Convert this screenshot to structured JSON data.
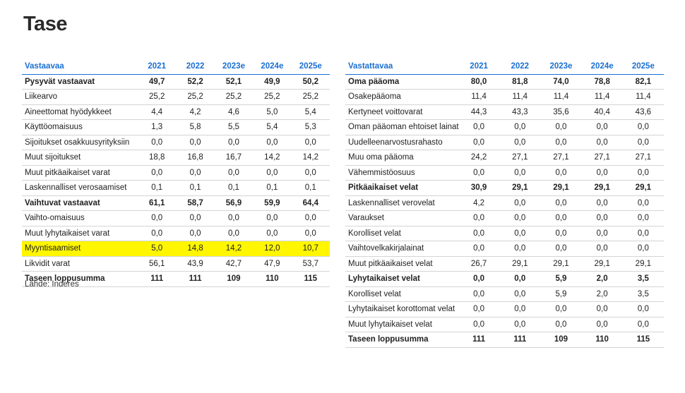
{
  "title": "Tase",
  "source": "Lähde: Inderes",
  "left": {
    "header": [
      "Vastaavaa",
      "2021",
      "2022",
      "2023e",
      "2024e",
      "2025e"
    ],
    "rows": [
      {
        "label": "Pysyvät vastaavat",
        "values": [
          "49,7",
          "52,2",
          "52,1",
          "49,9",
          "50,2"
        ],
        "bold": true
      },
      {
        "label": "Liikearvo",
        "values": [
          "25,2",
          "25,2",
          "25,2",
          "25,2",
          "25,2"
        ]
      },
      {
        "label": "Aineettomat hyödykkeet",
        "values": [
          "4,4",
          "4,2",
          "4,6",
          "5,0",
          "5,4"
        ]
      },
      {
        "label": "Käyttöomaisuus",
        "values": [
          "1,3",
          "5,8",
          "5,5",
          "5,4",
          "5,3"
        ]
      },
      {
        "label": "Sijoitukset osakkuusyrityksiin",
        "values": [
          "0,0",
          "0,0",
          "0,0",
          "0,0",
          "0,0"
        ]
      },
      {
        "label": "Muut sijoitukset",
        "values": [
          "18,8",
          "16,8",
          "16,7",
          "14,2",
          "14,2"
        ]
      },
      {
        "label": "Muut pitkäaikaiset varat",
        "values": [
          "0,0",
          "0,0",
          "0,0",
          "0,0",
          "0,0"
        ]
      },
      {
        "label": "Laskennalliset verosaamiset",
        "values": [
          "0,1",
          "0,1",
          "0,1",
          "0,1",
          "0,1"
        ]
      },
      {
        "label": "Vaihtuvat vastaavat",
        "values": [
          "61,1",
          "58,7",
          "56,9",
          "59,9",
          "64,4"
        ],
        "bold": true
      },
      {
        "label": "Vaihto-omaisuus",
        "values": [
          "0,0",
          "0,0",
          "0,0",
          "0,0",
          "0,0"
        ]
      },
      {
        "label": "Muut lyhytaikaiset varat",
        "values": [
          "0,0",
          "0,0",
          "0,0",
          "0,0",
          "0,0"
        ]
      },
      {
        "label": "Myyntisaamiset",
        "values": [
          "5,0",
          "14,8",
          "14,2",
          "12,0",
          "10,7"
        ],
        "highlight": true
      },
      {
        "label": "Likvidit varat",
        "values": [
          "56,1",
          "43,9",
          "42,7",
          "47,9",
          "53,7"
        ]
      },
      {
        "label": "Taseen loppusumma",
        "values": [
          "111",
          "111",
          "109",
          "110",
          "115"
        ],
        "bold": true
      }
    ]
  },
  "right": {
    "header": [
      "Vastattavaa",
      "2021",
      "2022",
      "2023e",
      "2024e",
      "2025e"
    ],
    "rows": [
      {
        "label": "Oma pääoma",
        "values": [
          "80,0",
          "81,8",
          "74,0",
          "78,8",
          "82,1"
        ],
        "bold": true
      },
      {
        "label": "Osakepääoma",
        "values": [
          "11,4",
          "11,4",
          "11,4",
          "11,4",
          "11,4"
        ]
      },
      {
        "label": "Kertyneet voittovarat",
        "values": [
          "44,3",
          "43,3",
          "35,6",
          "40,4",
          "43,6"
        ]
      },
      {
        "label": "Oman pääoman ehtoiset lainat",
        "values": [
          "0,0",
          "0,0",
          "0,0",
          "0,0",
          "0,0"
        ]
      },
      {
        "label": "Uudelleenarvostusrahasto",
        "values": [
          "0,0",
          "0,0",
          "0,0",
          "0,0",
          "0,0"
        ]
      },
      {
        "label": "Muu oma pääoma",
        "values": [
          "24,2",
          "27,1",
          "27,1",
          "27,1",
          "27,1"
        ]
      },
      {
        "label": "Vähemmistöosuus",
        "values": [
          "0,0",
          "0,0",
          "0,0",
          "0,0",
          "0,0"
        ]
      },
      {
        "label": "Pitkäaikaiset velat",
        "values": [
          "30,9",
          "29,1",
          "29,1",
          "29,1",
          "29,1"
        ],
        "bold": true
      },
      {
        "label": "Laskennalliset verovelat",
        "values": [
          "4,2",
          "0,0",
          "0,0",
          "0,0",
          "0,0"
        ]
      },
      {
        "label": "Varaukset",
        "values": [
          "0,0",
          "0,0",
          "0,0",
          "0,0",
          "0,0"
        ]
      },
      {
        "label": "Korolliset velat",
        "values": [
          "0,0",
          "0,0",
          "0,0",
          "0,0",
          "0,0"
        ]
      },
      {
        "label": "Vaihtovelkakirjalainat",
        "values": [
          "0,0",
          "0,0",
          "0,0",
          "0,0",
          "0,0"
        ]
      },
      {
        "label": "Muut pitkäaikaiset velat",
        "values": [
          "26,7",
          "29,1",
          "29,1",
          "29,1",
          "29,1"
        ]
      },
      {
        "label": "Lyhytaikaiset velat",
        "values": [
          "0,0",
          "0,0",
          "5,9",
          "2,0",
          "3,5"
        ],
        "bold": true
      },
      {
        "label": "Korolliset velat",
        "values": [
          "0,0",
          "0,0",
          "5,9",
          "2,0",
          "3,5"
        ]
      },
      {
        "label": "Lyhytaikaiset korottomat velat",
        "values": [
          "0,0",
          "0,0",
          "0,0",
          "0,0",
          "0,0"
        ]
      },
      {
        "label": "Muut lyhytaikaiset velat",
        "values": [
          "0,0",
          "0,0",
          "0,0",
          "0,0",
          "0,0"
        ]
      },
      {
        "label": "Taseen loppusumma",
        "values": [
          "111",
          "111",
          "109",
          "110",
          "115"
        ],
        "bold": true
      }
    ]
  }
}
